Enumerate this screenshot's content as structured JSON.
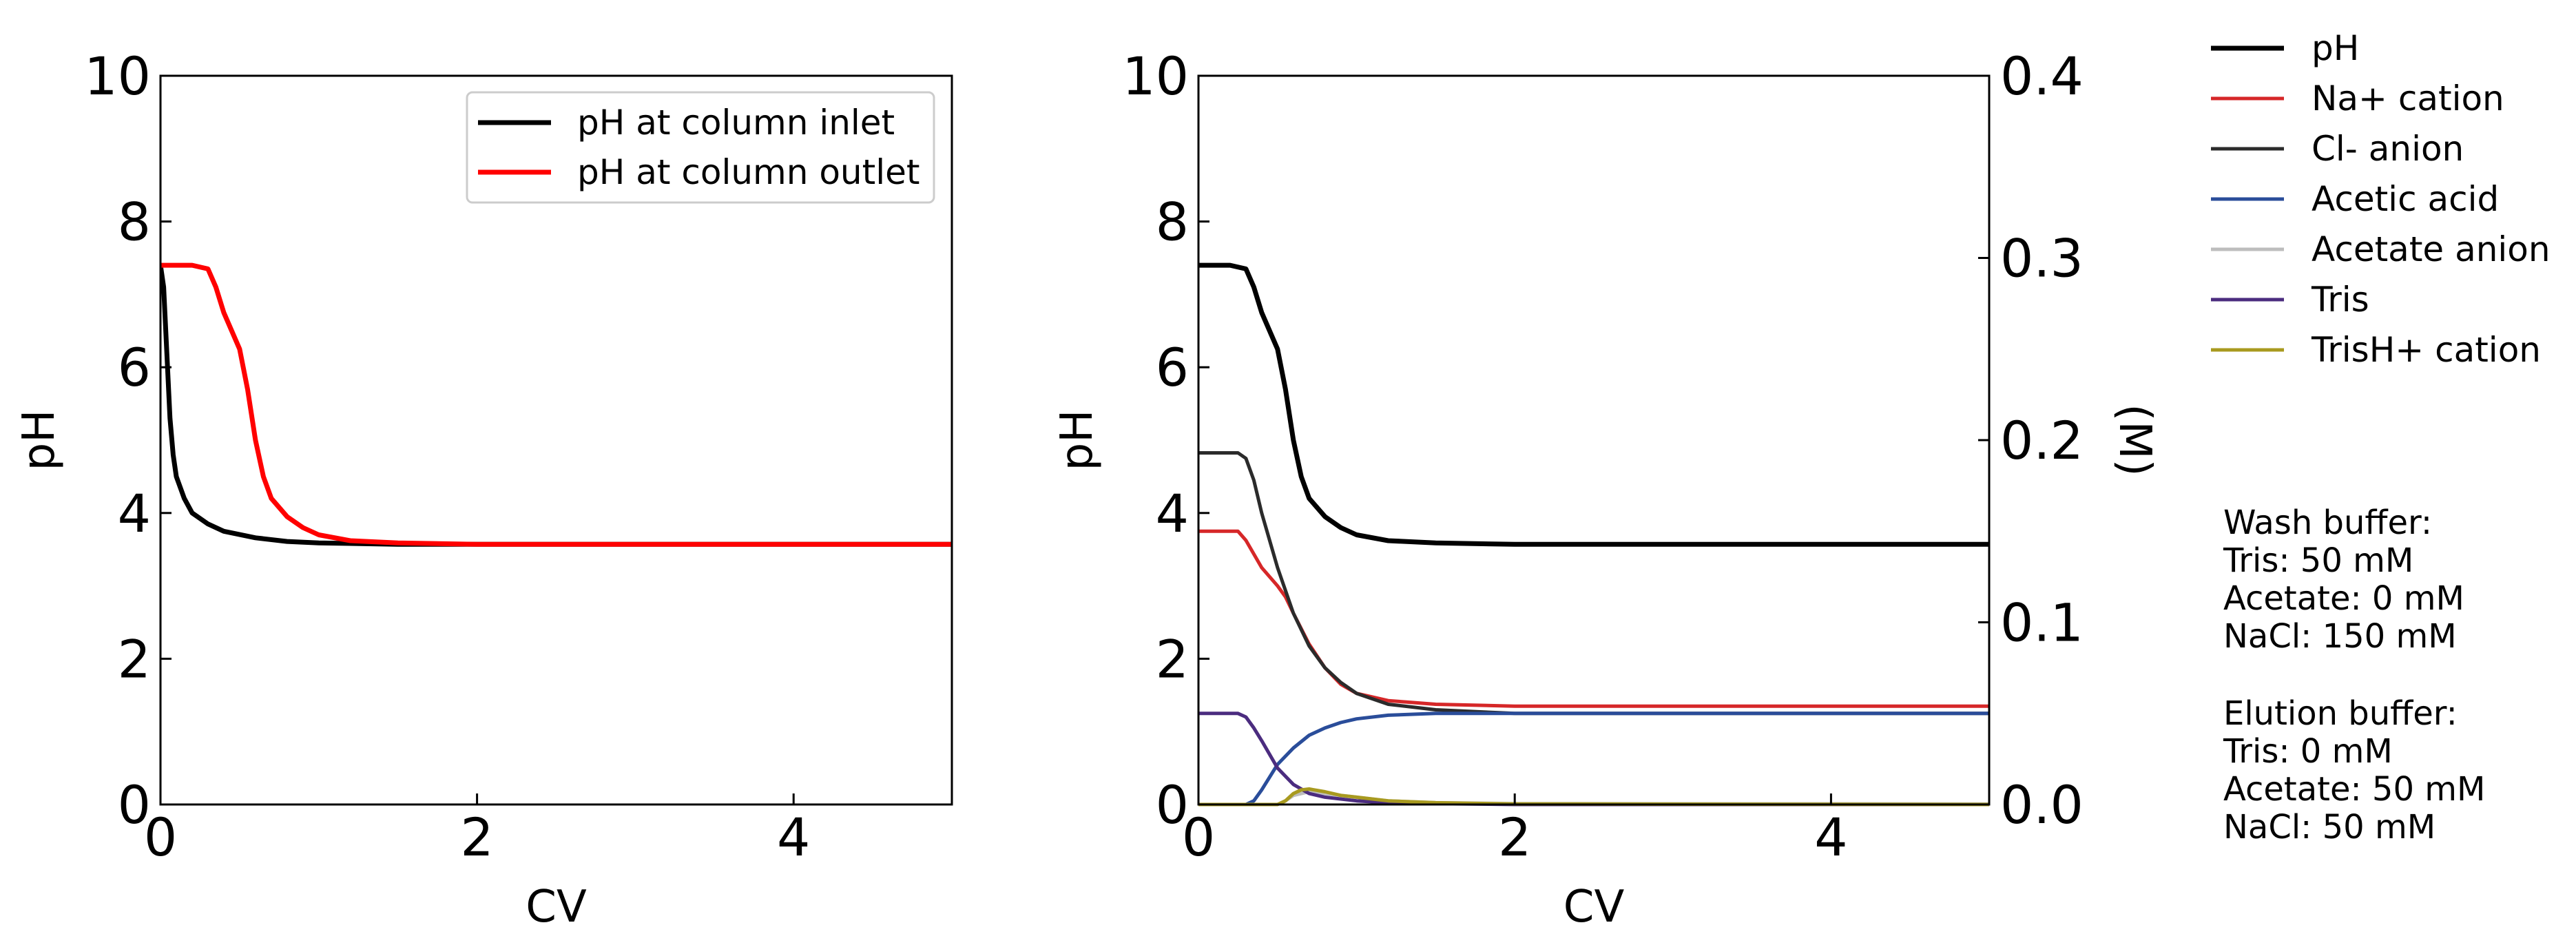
{
  "chart_data": [
    {
      "type": "line",
      "xlabel": "CV",
      "ylabel": "pH",
      "xlim": [
        0,
        5
      ],
      "ylim": [
        0,
        10
      ],
      "xticks": [
        "0",
        "2",
        "4"
      ],
      "yticks": [
        "0",
        "2",
        "4",
        "6",
        "8",
        "10"
      ],
      "legend": {
        "location": "upper-right",
        "framed": true
      },
      "series": [
        {
          "name": "pH at column inlet",
          "color": "#000000",
          "x": [
            0,
            0.02,
            0.04,
            0.06,
            0.08,
            0.1,
            0.15,
            0.2,
            0.3,
            0.4,
            0.6,
            0.8,
            1.0,
            1.5,
            2.0,
            3.0,
            4.0,
            5.0
          ],
          "y": [
            7.4,
            7.1,
            6.2,
            5.3,
            4.8,
            4.5,
            4.2,
            4.0,
            3.85,
            3.75,
            3.66,
            3.61,
            3.59,
            3.57,
            3.57,
            3.57,
            3.57,
            3.57
          ]
        },
        {
          "name": "pH at column outlet",
          "color": "#ff0000",
          "x": [
            0,
            0.2,
            0.3,
            0.35,
            0.4,
            0.45,
            0.5,
            0.55,
            0.6,
            0.65,
            0.7,
            0.8,
            0.9,
            1.0,
            1.2,
            1.5,
            2.0,
            3.0,
            5.0
          ],
          "y": [
            7.4,
            7.4,
            7.35,
            7.1,
            6.75,
            6.5,
            6.25,
            5.7,
            5.0,
            4.5,
            4.2,
            3.95,
            3.8,
            3.7,
            3.62,
            3.59,
            3.57,
            3.57,
            3.57
          ]
        }
      ]
    },
    {
      "type": "line",
      "xlabel": "CV",
      "ylabel": "pH",
      "y2label": "(M)",
      "xlim": [
        0,
        5
      ],
      "ylim": [
        0,
        10
      ],
      "y2lim": [
        0,
        0.4
      ],
      "xticks": [
        "0",
        "2",
        "4"
      ],
      "yticks": [
        "0",
        "2",
        "4",
        "6",
        "8",
        "10"
      ],
      "y2ticks": [
        "0.0",
        "0.1",
        "0.2",
        "0.3",
        "0.4"
      ],
      "legend": {
        "location": "outside-right"
      },
      "series": [
        {
          "name": "pH",
          "axis": "left",
          "color": "#000000",
          "x": [
            0,
            0.2,
            0.3,
            0.35,
            0.4,
            0.45,
            0.5,
            0.55,
            0.6,
            0.65,
            0.7,
            0.8,
            0.9,
            1.0,
            1.2,
            1.5,
            2.0,
            3.0,
            5.0
          ],
          "y": [
            7.4,
            7.4,
            7.35,
            7.1,
            6.75,
            6.5,
            6.25,
            5.7,
            5.0,
            4.5,
            4.2,
            3.95,
            3.8,
            3.7,
            3.62,
            3.59,
            3.57,
            3.57,
            3.57
          ]
        },
        {
          "name": "Na+ cation",
          "axis": "right",
          "color": "#d62728",
          "x": [
            0,
            0.25,
            0.3,
            0.4,
            0.5,
            0.55,
            0.6,
            0.7,
            0.8,
            0.9,
            1.0,
            1.2,
            1.5,
            2.0,
            3.0,
            5.0
          ],
          "y": [
            0.15,
            0.15,
            0.145,
            0.13,
            0.12,
            0.114,
            0.105,
            0.088,
            0.075,
            0.066,
            0.061,
            0.057,
            0.055,
            0.054,
            0.054,
            0.054
          ]
        },
        {
          "name": "Cl- anion",
          "axis": "right",
          "color": "#2b2b2b",
          "x": [
            0,
            0.25,
            0.3,
            0.35,
            0.4,
            0.5,
            0.6,
            0.7,
            0.8,
            0.9,
            1.0,
            1.2,
            1.5,
            2.0,
            3.0,
            5.0
          ],
          "y": [
            0.193,
            0.193,
            0.19,
            0.178,
            0.16,
            0.13,
            0.105,
            0.087,
            0.075,
            0.067,
            0.061,
            0.055,
            0.052,
            0.05,
            0.05,
            0.05
          ]
        },
        {
          "name": "Acetic acid",
          "axis": "right",
          "color": "#2a4d9a",
          "x": [
            0,
            0.3,
            0.35,
            0.4,
            0.45,
            0.5,
            0.6,
            0.7,
            0.8,
            0.9,
            1.0,
            1.2,
            1.5,
            2.0,
            3.0,
            5.0
          ],
          "y": [
            0,
            0,
            0.002,
            0.008,
            0.015,
            0.022,
            0.031,
            0.038,
            0.042,
            0.045,
            0.047,
            0.049,
            0.05,
            0.05,
            0.05,
            0.05
          ]
        },
        {
          "name": "Acetate anion",
          "axis": "right",
          "color": "#bdbdbd",
          "x": [
            0,
            0.5,
            0.55,
            0.6,
            0.7,
            0.8,
            1.0,
            1.2,
            1.5,
            2.0,
            5.0
          ],
          "y": [
            0,
            0,
            0.002,
            0.005,
            0.007,
            0.006,
            0.004,
            0.002,
            0.001,
            0.0005,
            0.0003
          ]
        },
        {
          "name": "Tris",
          "axis": "right",
          "color": "#4b2c7f",
          "x": [
            0,
            0.25,
            0.3,
            0.35,
            0.4,
            0.5,
            0.6,
            0.7,
            0.8,
            1.0,
            1.2,
            1.5,
            2.0,
            5.0
          ],
          "y": [
            0.05,
            0.05,
            0.048,
            0.042,
            0.035,
            0.02,
            0.011,
            0.006,
            0.004,
            0.002,
            0.001,
            0.0005,
            0,
            0
          ]
        },
        {
          "name": "TrisH+ cation",
          "axis": "right",
          "color": "#a89a1f",
          "x": [
            0,
            0.5,
            0.55,
            0.6,
            0.65,
            0.7,
            0.8,
            0.9,
            1.0,
            1.2,
            1.5,
            2.0,
            5.0
          ],
          "y": [
            0,
            0,
            0.002,
            0.006,
            0.008,
            0.0085,
            0.007,
            0.005,
            0.004,
            0.002,
            0.001,
            0.0003,
            0
          ]
        }
      ]
    }
  ],
  "notes": {
    "wash": [
      "Wash buffer:",
      "Tris: 50 mM",
      "Acetate: 0 mM",
      "NaCl: 150 mM"
    ],
    "elution": [
      "Elution buffer:",
      "Tris: 0 mM",
      "Acetate: 50 mM",
      "NaCl: 50 mM"
    ]
  }
}
